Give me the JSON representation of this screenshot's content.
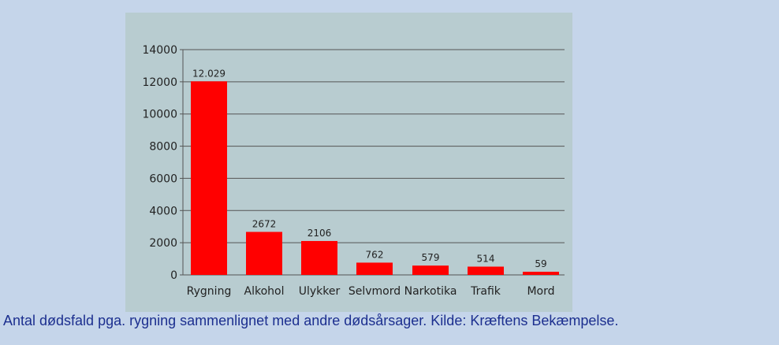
{
  "colors": {
    "page_background": "#c5d5ea",
    "plot_background": "#b8ccd0",
    "panel_background": "#ffffff",
    "bar": "#ff0000",
    "gridline": "#555555",
    "caption_text": "#1c2f8f"
  },
  "caption": "Antal dødsfald pga. rygning sammenlignet med andre dødsårsager. Kilde: Kræftens Bekæmpelse.",
  "chart_data": {
    "type": "bar",
    "title": "",
    "xlabel": "",
    "ylabel": "",
    "categories": [
      "Rygning",
      "Alkohol",
      "Ulykker",
      "Selvmord",
      "Narkotika",
      "Trafik",
      "Mord"
    ],
    "values": [
      12029,
      2672,
      2106,
      762,
      579,
      514,
      59
    ],
    "data_labels": [
      "12.029",
      "2672",
      "2106",
      "762",
      "579",
      "514",
      "59"
    ],
    "ylim": [
      0,
      14000
    ],
    "yticks": [
      0,
      2000,
      4000,
      6000,
      8000,
      10000,
      12000,
      14000
    ],
    "ytick_labels": [
      "0",
      "2000",
      "4000",
      "6000",
      "8000",
      "10000",
      "12000",
      "14000"
    ],
    "grid": true,
    "legend": "none"
  }
}
